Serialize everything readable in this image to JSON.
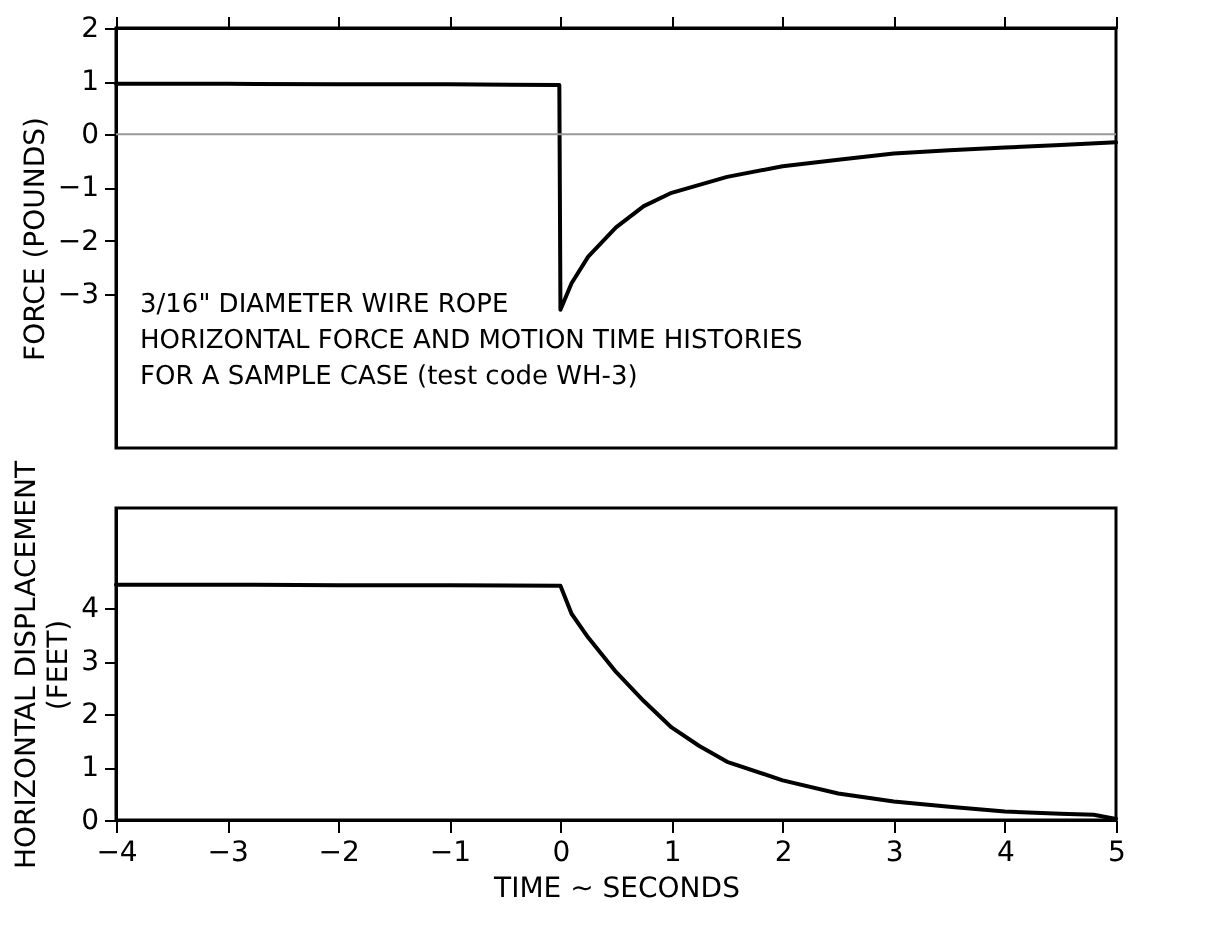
{
  "chart_data": [
    {
      "type": "line",
      "ylabel": "FORCE (POUNDS)",
      "xlim": [
        -4,
        5
      ],
      "xticks": [
        -4,
        -3,
        -2,
        -1,
        0,
        1,
        2,
        3,
        4,
        5
      ],
      "ylim": [
        -5.9,
        2
      ],
      "yticks": [
        -3,
        -2,
        -1,
        0,
        1,
        2
      ],
      "tick_labels": "y",
      "grid": false,
      "line_style": "solid",
      "marker": "none",
      "ref_lines": [
        {
          "axis": "y",
          "value": 0,
          "color": "#999999"
        }
      ],
      "annotations": [
        "3/16\" DIAMETER WIRE ROPE",
        "HORIZONTAL FORCE AND MOTION TIME HISTORIES",
        "FOR A SAMPLE CASE (test code WH-3)"
      ],
      "series": [
        {
          "color": "#000000",
          "x": [
            -4,
            -3,
            -2,
            -1,
            -0.01,
            0,
            0.1,
            0.25,
            0.5,
            0.75,
            1,
            1.5,
            2,
            2.5,
            3,
            3.5,
            4,
            4.5,
            5
          ],
          "values": [
            0.95,
            0.95,
            0.94,
            0.94,
            0.93,
            -3.3,
            -2.8,
            -2.3,
            -1.75,
            -1.35,
            -1.1,
            -0.8,
            -0.6,
            -0.48,
            -0.36,
            -0.3,
            -0.25,
            -0.2,
            -0.15
          ]
        }
      ]
    },
    {
      "type": "line",
      "xlabel": "TIME ~ SECONDS",
      "ylabel": "HORIZONTAL DISPLACEMENT\n(FEET)",
      "xlim": [
        -4,
        5
      ],
      "xticks": [
        -4,
        -3,
        -2,
        -1,
        0,
        1,
        2,
        3,
        4,
        5
      ],
      "ylim": [
        0,
        5.9
      ],
      "yticks": [
        0,
        1,
        2,
        3,
        4
      ],
      "grid": false,
      "line_style": "solid",
      "marker": "none",
      "series": [
        {
          "color": "#000000",
          "x": [
            -4,
            -3,
            -2,
            -1,
            0,
            0.1,
            0.25,
            0.5,
            0.75,
            1,
            1.25,
            1.5,
            2,
            2.5,
            3,
            3.5,
            4,
            4.5,
            4.8,
            5
          ],
          "values": [
            4.45,
            4.45,
            4.44,
            4.44,
            4.43,
            3.9,
            3.45,
            2.8,
            2.25,
            1.75,
            1.4,
            1.1,
            0.75,
            0.5,
            0.35,
            0.25,
            0.16,
            0.12,
            0.1,
            0.02
          ]
        }
      ]
    }
  ]
}
